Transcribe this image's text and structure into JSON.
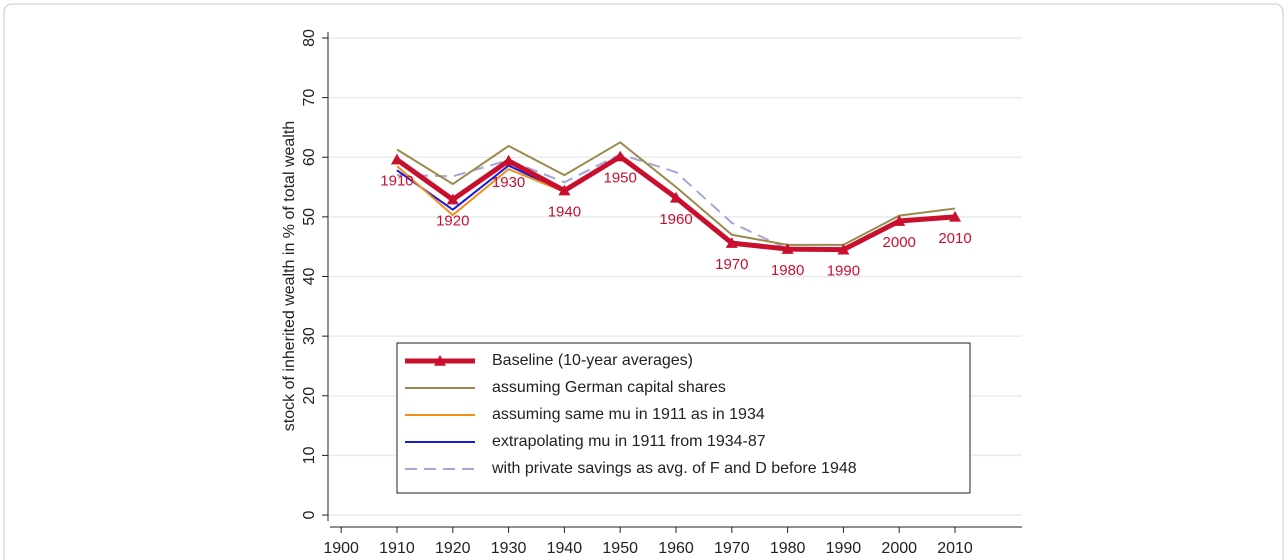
{
  "chart_data": {
    "type": "line",
    "y_label": "stock of inherited wealth in % of total wealth",
    "x": [
      1910,
      1920,
      1930,
      1940,
      1950,
      1960,
      1970,
      1980,
      1990,
      2000,
      2010
    ],
    "series": [
      {
        "name": "Baseline (10-year averages)",
        "color": "#c8102e",
        "width": 5,
        "marker": "triangle",
        "values": [
          59.6,
          52.9,
          59.4,
          54.4,
          60.1,
          53.2,
          45.6,
          44.6,
          44.5,
          49.3,
          50.0
        ]
      },
      {
        "name": "assuming German capital shares",
        "color": "#9c8a4d",
        "width": 2,
        "values": [
          61.3,
          55.5,
          61.9,
          57.0,
          62.5,
          55.0,
          47.0,
          45.3,
          45.3,
          50.2,
          51.4
        ]
      },
      {
        "name": "assuming same mu in 1911 as in 1934",
        "color": "#f0901a",
        "width": 2,
        "values": [
          58.5,
          50.3,
          58.0,
          54.2,
          null,
          null,
          null,
          null,
          null,
          null,
          null
        ]
      },
      {
        "name": "extrapolating mu in 1911 from 1934-87",
        "color": "#1a1adc",
        "width": 2,
        "values": [
          57.8,
          51.2,
          58.6,
          54.2,
          null,
          null,
          null,
          null,
          null,
          null,
          null
        ]
      },
      {
        "name": "with private savings as avg. of F and D before 1948",
        "color": "#a8a4d8",
        "width": 2,
        "dash": true,
        "values": [
          57.0,
          56.8,
          59.5,
          55.8,
          60.5,
          57.5,
          49.0,
          44.6,
          44.6,
          49.4,
          50.1
        ]
      }
    ],
    "xlim": [
      1898,
      2022
    ],
    "ylim": [
      -1,
      81
    ],
    "xticks": [
      1900,
      1910,
      1920,
      1930,
      1940,
      1950,
      1960,
      1970,
      1980,
      1990,
      2000,
      2010
    ],
    "yticks": [
      0,
      10,
      20,
      30,
      40,
      50,
      60,
      70,
      80
    ],
    "grid": true
  }
}
